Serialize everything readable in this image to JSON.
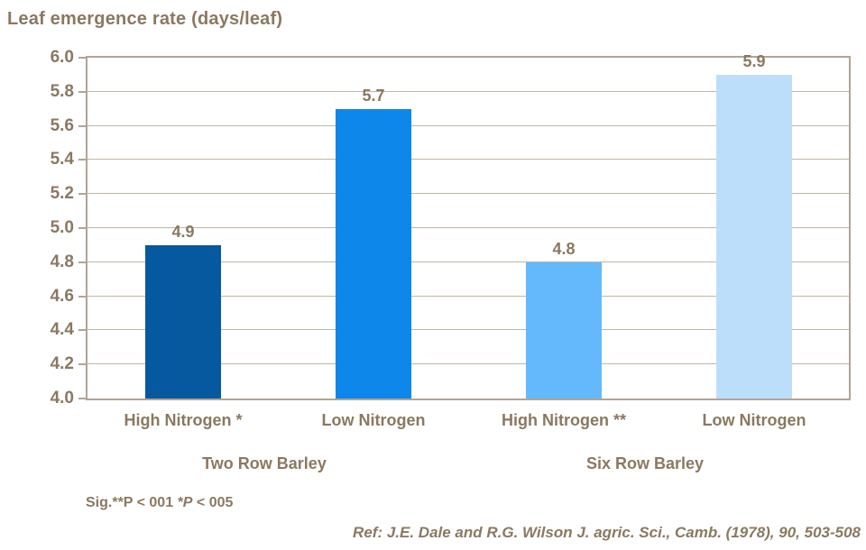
{
  "title": "Leaf emergence rate (days/leaf)",
  "significance": {
    "prefix": "Sig.**P < 001 ",
    "italic": "*P",
    "suffix": " < 005"
  },
  "reference": "Ref: J.E. Dale and R.G. Wilson J. agric. Sci., Camb. (1978), 90, 503-508",
  "colors": {
    "background": "#FFFFFF",
    "text": "#8B7860",
    "axis_line": "#B2A496",
    "gridline": "#C1B5A7",
    "bar_colors": [
      "#06599E",
      "#0D87E9",
      "#64B9FC",
      "#BCDEFB"
    ]
  },
  "chart_data": {
    "type": "bar",
    "title": "Leaf emergence rate (days/leaf)",
    "ylabel": "Leaf emergence rate (days/leaf)",
    "xlabel": "",
    "categories": [
      "High Nitrogen *",
      "Low Nitrogen",
      "High Nitrogen **",
      "Low Nitrogen"
    ],
    "values": [
      4.9,
      5.7,
      4.8,
      5.9
    ],
    "value_labels": [
      "4.9",
      "5.7",
      "4.8",
      "5.9"
    ],
    "groups": [
      {
        "label": "Two Row Barley",
        "categories": [
          0,
          1
        ]
      },
      {
        "label": "Six Row Barley",
        "categories": [
          2,
          3
        ]
      }
    ],
    "ylim": [
      4.0,
      6.0
    ],
    "ytick_step": 0.2,
    "ytick_labels": [
      "6.0",
      "5.8",
      "5.6",
      "5.4",
      "5.2",
      "5.0",
      "4.8",
      "4.6",
      "4.4",
      "4.2",
      "4.0"
    ],
    "grid": true,
    "legend": false,
    "annotations": [
      "Sig.**P < 001 *P < 005",
      "Ref: J.E. Dale and R.G. Wilson J. agric. Sci., Camb. (1978), 90, 503-508"
    ]
  }
}
